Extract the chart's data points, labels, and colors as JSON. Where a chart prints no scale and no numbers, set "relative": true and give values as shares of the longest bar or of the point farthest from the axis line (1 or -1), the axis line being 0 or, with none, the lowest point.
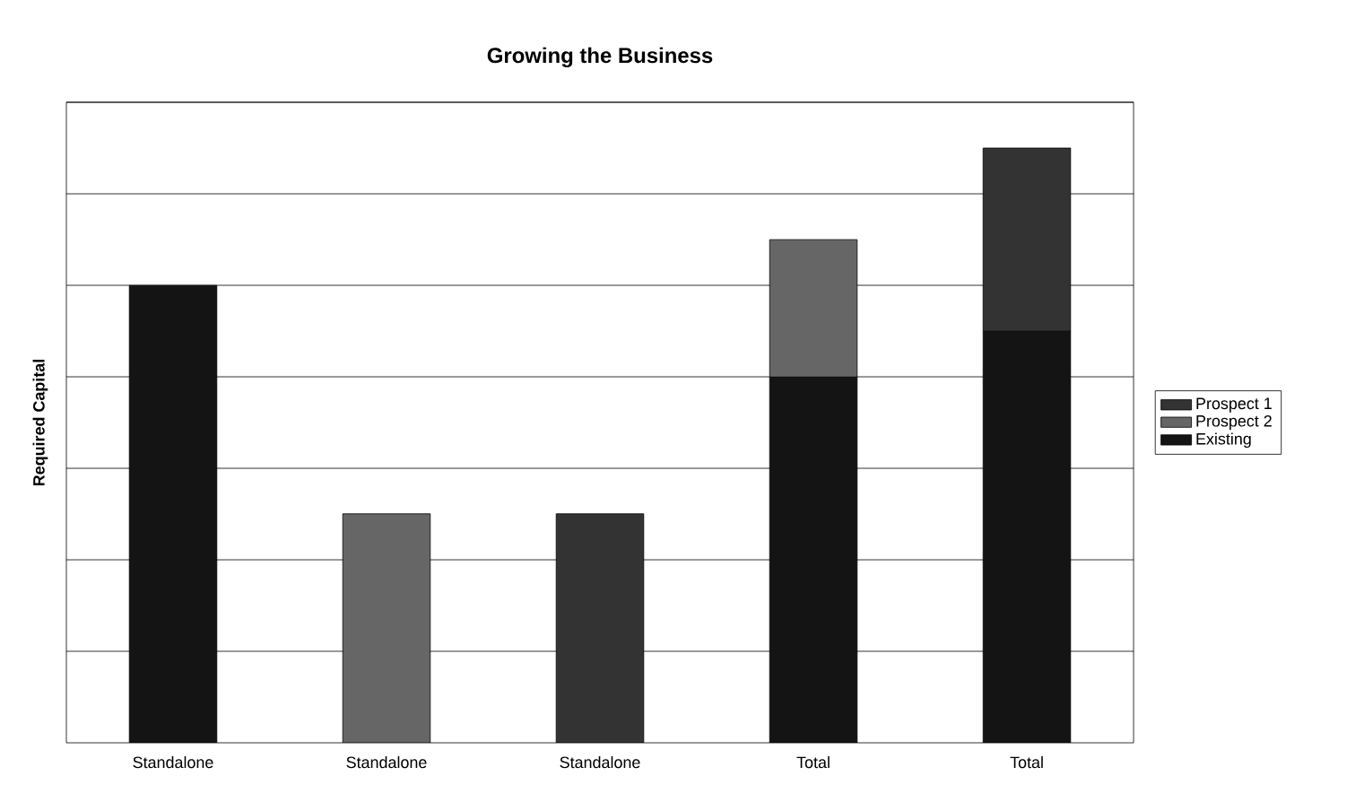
{
  "chart_data": {
    "type": "bar",
    "title": "Growing the Business",
    "ylabel": "Required Capital",
    "categories": [
      "Standalone",
      "Standalone",
      "Standalone",
      "Total",
      "Total"
    ],
    "stacked": true,
    "relative": true,
    "grid": "y",
    "legend": "right",
    "series": [
      {
        "name": "Existing",
        "color": "#141414",
        "values": [
          0.769,
          null,
          null,
          0.615,
          0.692
        ]
      },
      {
        "name": "Prospect 2",
        "color": "#666666",
        "values": [
          null,
          0.385,
          null,
          0.231,
          null
        ]
      },
      {
        "name": "Prospect 1",
        "color": "#333333",
        "values": [
          null,
          null,
          0.385,
          null,
          0.308
        ]
      }
    ]
  }
}
